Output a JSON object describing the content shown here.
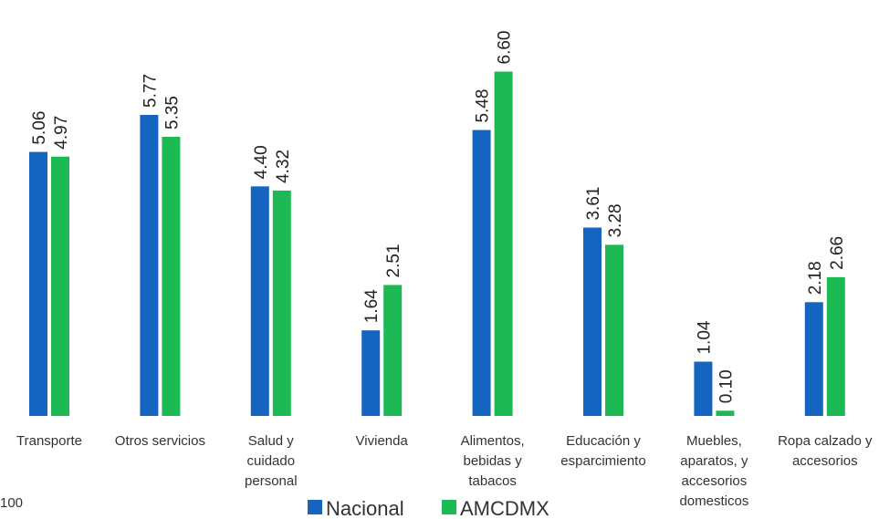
{
  "chart_data": {
    "type": "bar",
    "title": "",
    "xlabel": "",
    "ylabel": "",
    "ylim": [
      0,
      6.6
    ],
    "grid": false,
    "legend_position": "bottom",
    "categories": [
      [
        "Transporte"
      ],
      [
        "Otros servicios"
      ],
      [
        "Salud y",
        "cuidado",
        "personal"
      ],
      [
        "Vivienda"
      ],
      [
        "Alimentos,",
        "bebidas y",
        "tabacos"
      ],
      [
        "Educación y",
        "esparcimiento"
      ],
      [
        "Muebles,",
        "aparatos, y",
        "accesorios",
        "domesticos"
      ],
      [
        "Ropa calzado y",
        "accesorios"
      ]
    ],
    "series": [
      {
        "name": "Nacional",
        "color": "#1565c0",
        "values": [
          5.06,
          5.77,
          4.4,
          1.64,
          5.48,
          3.61,
          1.04,
          2.18
        ],
        "labels": [
          "5.06",
          "5.77",
          "4.40",
          "1.64",
          "5.48",
          "3.61",
          "1.04",
          "2.18"
        ]
      },
      {
        "name": "AMCDMX",
        "color": "#1db954",
        "values": [
          4.97,
          5.35,
          4.32,
          2.51,
          6.6,
          3.28,
          0.1,
          2.66
        ],
        "labels": [
          "4.97",
          "5.35",
          "4.32",
          "2.51",
          "6.60",
          "3.28",
          "0.10",
          "2.66"
        ]
      }
    ],
    "stray_text": "100"
  }
}
